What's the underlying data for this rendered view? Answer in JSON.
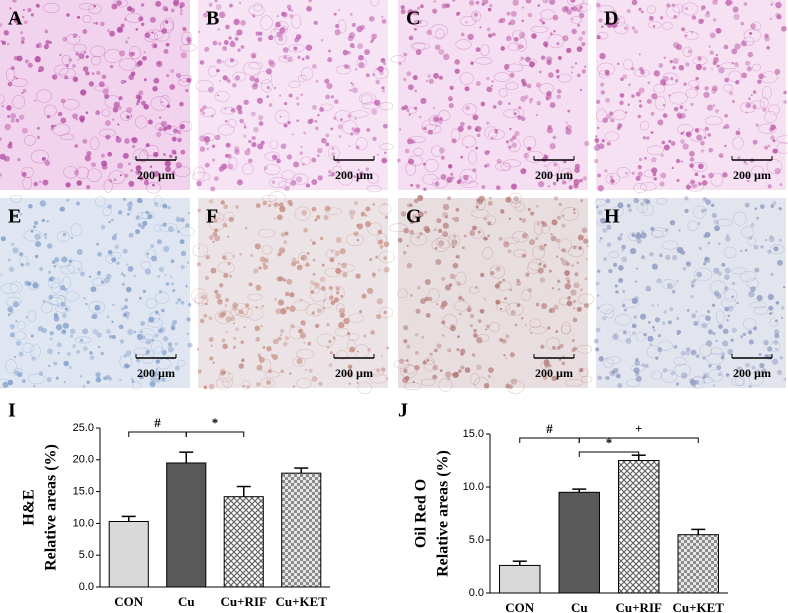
{
  "panels": [
    {
      "label": "A",
      "scale": "200 µm",
      "tint": "#f2d3ee",
      "dot": "#b0449c"
    },
    {
      "label": "B",
      "scale": "200 µm",
      "tint": "#f6e3f3",
      "dot": "#c063b2"
    },
    {
      "label": "C",
      "scale": "200 µm",
      "tint": "#f5def2",
      "dot": "#b8529f"
    },
    {
      "label": "D",
      "scale": "200 µm",
      "tint": "#f6e1f3",
      "dot": "#bd5aa8"
    },
    {
      "label": "E",
      "scale": "200 µm",
      "tint": "#dfe6f1",
      "dot": "#7e9cc8"
    },
    {
      "label": "F",
      "scale": "200 µm",
      "tint": "#ebe3e6",
      "dot": "#c58a7c"
    },
    {
      "label": "G",
      "scale": "200 µm",
      "tint": "#e8dedf",
      "dot": "#b57a78"
    },
    {
      "label": "H",
      "scale": "200 µm",
      "tint": "#e3e5ee",
      "dot": "#8a97c0"
    }
  ],
  "chart_data": [
    {
      "type": "bar",
      "panel_label": "I",
      "ylabel_lines": [
        "H&E",
        "Relative areas (%)"
      ],
      "categories": [
        "CON",
        "Cu",
        "Cu+RIF",
        "Cu+KET"
      ],
      "values": [
        10.3,
        19.5,
        14.2,
        17.9
      ],
      "errors": [
        0.8,
        1.7,
        1.6,
        0.8
      ],
      "colors": [
        "#d9d9d9",
        "#595959",
        "#a6a6a6",
        "#bfbfbf"
      ],
      "patterns": [
        "solid",
        "solid",
        "crosshatch",
        "checker"
      ],
      "ylim": [
        0,
        25
      ],
      "yticks": [
        {
          "value": 0,
          "label": "0.0"
        },
        {
          "value": 5,
          "label": "5.0"
        },
        {
          "value": 10,
          "label": "10.0"
        },
        {
          "value": 15,
          "label": "15.0"
        },
        {
          "value": 20,
          "label": "20.0"
        },
        {
          "value": 25,
          "label": "25.0"
        }
      ],
      "comparisons": [
        {
          "label": "#",
          "pair": [
            "CON",
            "Cu"
          ]
        },
        {
          "label": "*",
          "pair": [
            "Cu",
            "Cu+RIF"
          ]
        }
      ]
    },
    {
      "type": "bar",
      "panel_label": "J",
      "ylabel_lines": [
        "Oil Red O",
        "Relative areas (%)"
      ],
      "categories": [
        "CON",
        "Cu",
        "Cu+RIF",
        "Cu+KET"
      ],
      "values": [
        2.6,
        9.5,
        12.5,
        5.5
      ],
      "errors": [
        0.4,
        0.3,
        0.5,
        0.5
      ],
      "colors": [
        "#d9d9d9",
        "#595959",
        "#a6a6a6",
        "#bfbfbf"
      ],
      "patterns": [
        "solid",
        "solid",
        "crosshatch",
        "checker"
      ],
      "ylim": [
        0,
        15
      ],
      "yticks": [
        {
          "value": 0,
          "label": "0.0"
        },
        {
          "value": 5,
          "label": "5.0"
        },
        {
          "value": 10,
          "label": "10.0"
        },
        {
          "value": 15,
          "label": "15.0"
        }
      ],
      "comparisons": [
        {
          "label": "#",
          "pair": [
            "CON",
            "Cu"
          ]
        },
        {
          "label": "*",
          "pair": [
            "Cu",
            "Cu+RIF"
          ]
        },
        {
          "label": "+",
          "pair": [
            "Cu",
            "Cu+KET"
          ]
        }
      ]
    }
  ]
}
